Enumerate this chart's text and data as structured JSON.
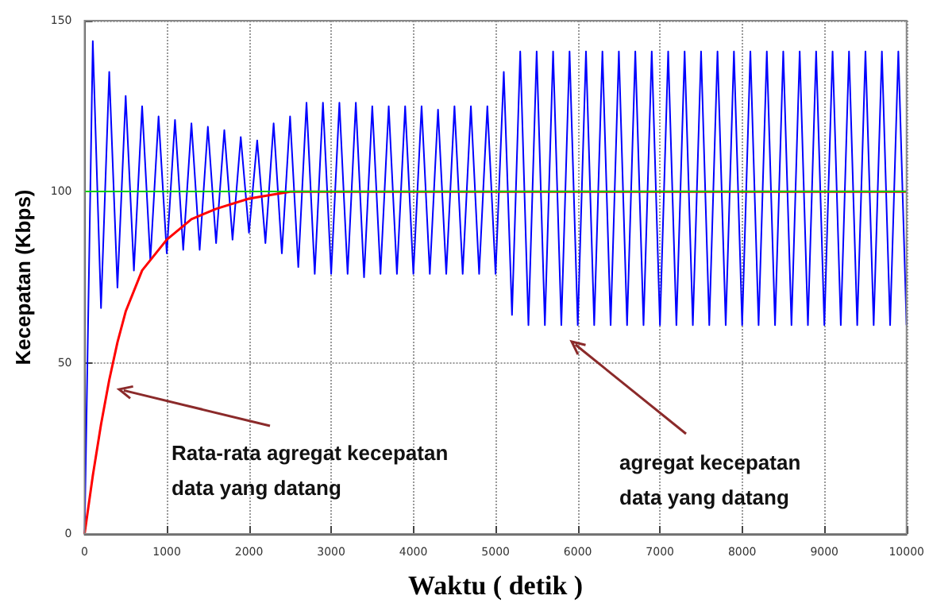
{
  "chart_data": {
    "type": "line",
    "xlabel": "Waktu ( detik )",
    "ylabel": "Kecepatan (Kbps)",
    "xlim": [
      0,
      10000
    ],
    "xticks": [
      0,
      1000,
      2000,
      3000,
      4000,
      5000,
      6000,
      7000,
      8000,
      9000,
      10000
    ],
    "ylim": [
      0,
      150
    ],
    "yticks": [
      0,
      50,
      100,
      150
    ],
    "grid": true,
    "marker": "none",
    "line_style": "solid",
    "series": [
      {
        "color": "#0000ff",
        "x": [
          0,
          100,
          200,
          300,
          400,
          500,
          600,
          700,
          800,
          900,
          1000,
          1100,
          1200,
          1300,
          1400,
          1500,
          1600,
          1700,
          1800,
          1900,
          2000,
          2100,
          2200,
          2300,
          2400,
          2500,
          2600,
          2700,
          2800,
          2900,
          3000,
          3100,
          3200,
          3300,
          3400,
          3500,
          3600,
          3700,
          3800,
          3900,
          4000,
          4100,
          4200,
          4300,
          4400,
          4500,
          4600,
          4700,
          4800,
          4900,
          5000,
          5100,
          5200,
          5300,
          5400,
          5500,
          5600,
          5700,
          5800,
          5900,
          6000,
          6100,
          6200,
          6300,
          6400,
          6500,
          6600,
          6700,
          6800,
          6900,
          7000,
          7100,
          7200,
          7300,
          7400,
          7500,
          7600,
          7700,
          7800,
          7900,
          8000,
          8100,
          8200,
          8300,
          8400,
          8500,
          8600,
          8700,
          8800,
          8900,
          9000,
          9100,
          9200,
          9300,
          9400,
          9500,
          9600,
          9700,
          9800,
          9900,
          10000
        ],
        "values": [
          0,
          144,
          66,
          135,
          72,
          128,
          77,
          125,
          80,
          122,
          82,
          121,
          83,
          120,
          83,
          119,
          85,
          118,
          86,
          116,
          88,
          115,
          85,
          120,
          82,
          122,
          78,
          126,
          76,
          126,
          76,
          126,
          76,
          126,
          75,
          125,
          76,
          125,
          76,
          125,
          76,
          125,
          76,
          124,
          76,
          125,
          76,
          125,
          76,
          125,
          76,
          135,
          64,
          141,
          61,
          141,
          61,
          141,
          61,
          141,
          61,
          141,
          61,
          141,
          61,
          141,
          61,
          141,
          61,
          141,
          61,
          141,
          61,
          141,
          61,
          141,
          61,
          141,
          61,
          141,
          61,
          141,
          61,
          141,
          61,
          141,
          61,
          141,
          61,
          141,
          61,
          141,
          61,
          141,
          61,
          141,
          61,
          141,
          61,
          141,
          61
        ]
      },
      {
        "color": "#ff0000",
        "x": [
          0,
          100,
          200,
          300,
          400,
          500,
          700,
          1000,
          1300,
          1600,
          2000,
          2500,
          3000,
          10000
        ],
        "values": [
          0,
          17,
          32,
          45,
          56,
          65,
          77,
          86,
          92,
          95,
          98,
          100,
          100,
          100
        ]
      }
    ],
    "ref_lines": [
      {
        "axis": "y",
        "value": 100,
        "color": "#00cc00"
      }
    ],
    "annotations": [
      "Rata-rata agregat kecepatan data yang datang",
      "agregat kecepatan data yang datang"
    ]
  }
}
